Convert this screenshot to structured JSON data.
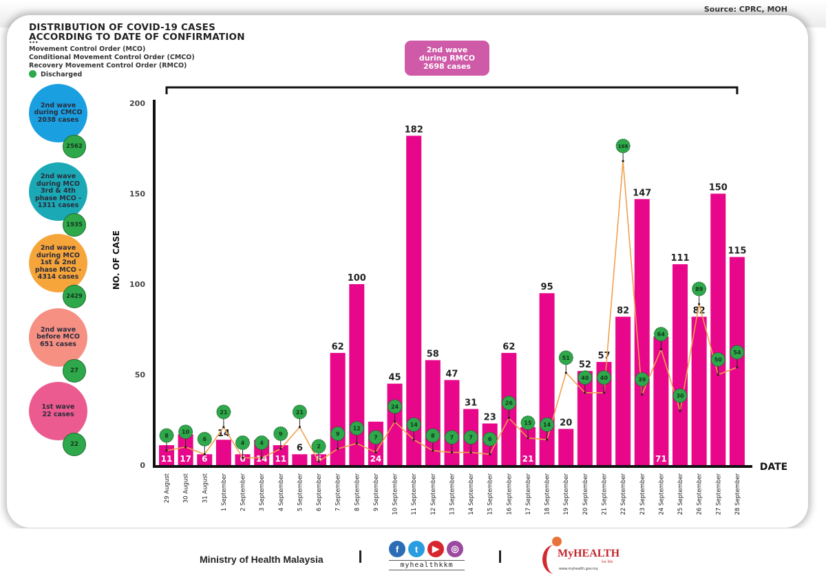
{
  "source": "Source: CPRC, MOH",
  "title_line1": "DISTRIBUTION OF COVID-19 CASES",
  "title_line2": "ACCORDING TO DATE OF CONFIRMATION",
  "legend": {
    "dots": "•••",
    "mco": "Movement Control Order (MCO)",
    "cmco": "Conditional Movement Control Order (CMCO)",
    "rmco": "Recovery Movement Control Order (RMCO)",
    "discharged": "Discharged",
    "discharged_color": "#2ea84a"
  },
  "waves": [
    {
      "label_lines": [
        "2nd wave",
        "during CMCO",
        "2038 cases"
      ],
      "color": "#1a9fe0",
      "discharged": "2562"
    },
    {
      "label_lines": [
        "2nd wave",
        "during MCO",
        "3rd & 4th",
        "phase MCO -",
        "1311 cases"
      ],
      "color": "#1aa9b5",
      "discharged": "1935"
    },
    {
      "label_lines": [
        "2nd wave",
        "during MCO",
        "1st & 2nd",
        "phase MCO -",
        "4314 cases"
      ],
      "color": "#f6a53a",
      "discharged": "2429"
    },
    {
      "label_lines": [
        "2nd wave",
        "before MCO",
        "651 cases"
      ],
      "color": "#f59083",
      "discharged": "27"
    },
    {
      "label_lines": [
        "1st wave",
        "22 cases"
      ],
      "color": "#ec5b8f",
      "discharged": "22"
    }
  ],
  "rmco_box": {
    "lines": [
      "2nd wave",
      "during RMCO",
      "2698 cases"
    ],
    "color": "#cf5aa8"
  },
  "chart_data": {
    "type": "bar",
    "title": "DISTRIBUTION OF COVID-19 CASES ACCORDING TO DATE OF CONFIRMATION",
    "xlabel": "DATE",
    "ylabel": "NO. OF CASE",
    "ylim": [
      0,
      200
    ],
    "yticks": [
      0,
      50,
      100,
      150,
      200
    ],
    "grid": false,
    "legend": "top-left",
    "categories": [
      "29 August",
      "30 August",
      "31 August",
      "1 September",
      "2 September",
      "3 September",
      "4 September",
      "5 September",
      "6 September",
      "7 September",
      "8 September",
      "9 September",
      "10 September",
      "11 September",
      "12 September",
      "13 September",
      "14 September",
      "15 September",
      "16 September",
      "17 September",
      "18 September",
      "19 September",
      "20 September",
      "21 September",
      "22 September",
      "23 September",
      "24 September",
      "25 September",
      "26 September",
      "27 September",
      "28 September"
    ],
    "series": [
      {
        "name": "Cases",
        "type": "bar",
        "color": "#e8068a",
        "values": [
          11,
          17,
          6,
          14,
          6,
          14,
          11,
          6,
          6,
          62,
          100,
          24,
          45,
          182,
          58,
          47,
          31,
          23,
          62,
          21,
          95,
          20,
          52,
          57,
          82,
          147,
          71,
          111,
          82,
          150,
          115
        ]
      },
      {
        "name": "Discharged",
        "type": "line",
        "color": "#f0a04b",
        "marker_color": "#2ea84a",
        "values": [
          8,
          10,
          6,
          21,
          4,
          4,
          9,
          21,
          2,
          9,
          12,
          7,
          24,
          14,
          8,
          7,
          7,
          6,
          26,
          15,
          14,
          51,
          40,
          40,
          168,
          39,
          64,
          30,
          89,
          50,
          54
        ]
      }
    ]
  },
  "footer": {
    "ministry": "Ministry of Health Malaysia",
    "social_handle": "myhealthkkm",
    "social_icons": [
      {
        "name": "facebook",
        "glyph": "f",
        "color": "#2b6cb5"
      },
      {
        "name": "twitter",
        "glyph": "t",
        "color": "#2a9de0"
      },
      {
        "name": "youtube",
        "glyph": "▶",
        "color": "#d7262d"
      },
      {
        "name": "instagram",
        "glyph": "◎",
        "color": "#9c4aa0"
      }
    ],
    "brand_name": "MyHEALTH",
    "brand_tagline": "for life",
    "brand_url": "www.myhealth.gov.my"
  }
}
